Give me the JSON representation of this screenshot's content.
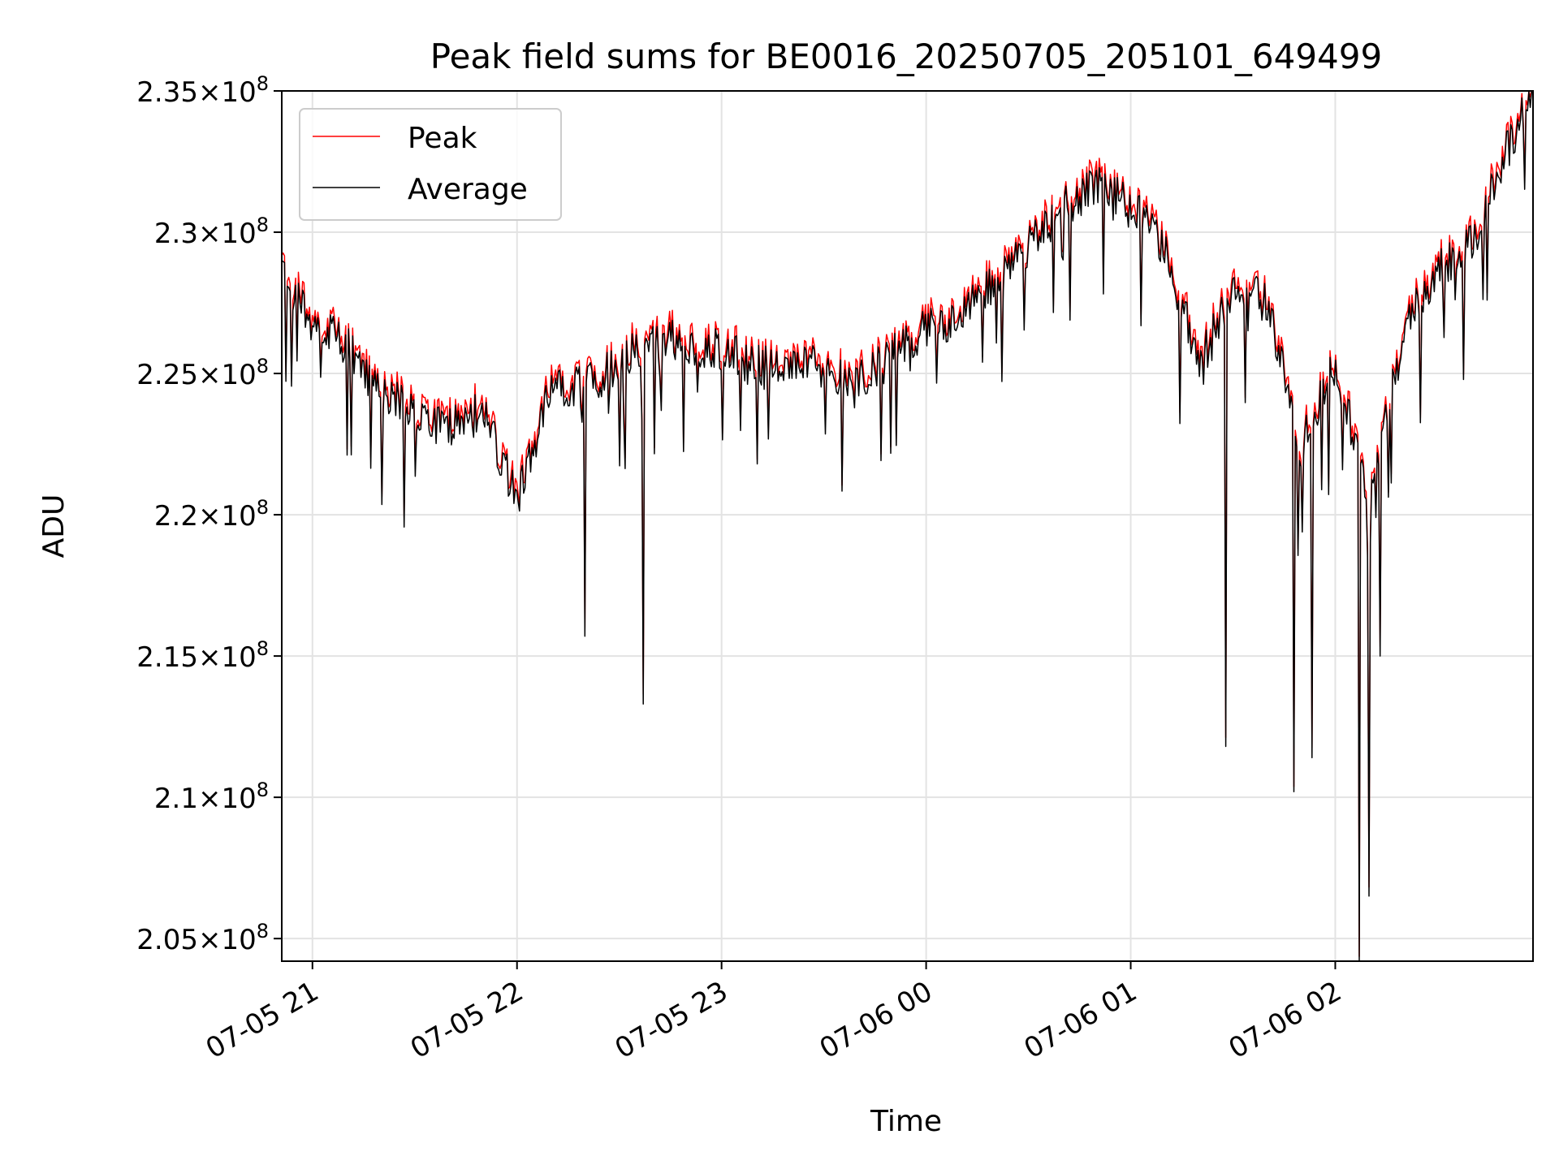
{
  "chart_data": {
    "type": "line",
    "title": "Peak field sums for BE0016_20250705_205101_649499",
    "xlabel": "Time",
    "ylabel": "ADU",
    "x_type": "time",
    "xlim": [
      "2025-07-05 20:51",
      "2025-07-06 02:58"
    ],
    "ylim": [
      204200000,
      235000000
    ],
    "x_ticks": [
      "2025-07-05 21:00",
      "2025-07-05 22:00",
      "2025-07-05 23:00",
      "2025-07-06 00:00",
      "2025-07-06 01:00",
      "2025-07-06 02:00"
    ],
    "x_tick_labels": [
      "07-05 21",
      "07-05 22",
      "07-05 23",
      "07-06 00",
      "07-06 01",
      "07-06 02"
    ],
    "y_ticks": [
      205000000,
      210000000,
      215000000,
      220000000,
      225000000,
      230000000,
      235000000
    ],
    "y_tick_mantissas": [
      "2.05",
      "2.1",
      "2.15",
      "2.2",
      "2.25",
      "2.3",
      "2.35"
    ],
    "y_tick_base": "10",
    "y_tick_exponent": "8",
    "grid": true,
    "legend_position": "top-left",
    "x": [
      "2025-07-05 20:51",
      "2025-07-05 21:00",
      "2025-07-05 21:10",
      "2025-07-05 21:20",
      "2025-07-05 21:30",
      "2025-07-05 21:40",
      "2025-07-05 21:50",
      "2025-07-05 22:00",
      "2025-07-05 22:10",
      "2025-07-05 22:20",
      "2025-07-05 22:30",
      "2025-07-05 22:40",
      "2025-07-05 22:50",
      "2025-07-05 23:00",
      "2025-07-05 23:10",
      "2025-07-05 23:20",
      "2025-07-05 23:30",
      "2025-07-05 23:40",
      "2025-07-05 23:50",
      "2025-07-06 00:00",
      "2025-07-06 00:10",
      "2025-07-06 00:20",
      "2025-07-06 00:30",
      "2025-07-06 00:40",
      "2025-07-06 00:50",
      "2025-07-06 01:00",
      "2025-07-06 01:10",
      "2025-07-06 01:20",
      "2025-07-06 01:30",
      "2025-07-06 01:40",
      "2025-07-06 01:50",
      "2025-07-06 02:00",
      "2025-07-06 02:10",
      "2025-07-06 02:20",
      "2025-07-06 02:30",
      "2025-07-06 02:40",
      "2025-07-06 02:50",
      "2025-07-06 02:58"
    ],
    "series": [
      {
        "name": "Peak",
        "color": "#ff0000",
        "values": [
          228500000,
          227000000,
          226200000,
          224500000,
          223700000,
          223200000,
          224000000,
          220600000,
          224800000,
          224700000,
          225500000,
          226500000,
          226200000,
          226000000,
          225500000,
          225500000,
          225400000,
          224800000,
          225800000,
          226800000,
          227200000,
          228400000,
          229700000,
          231000000,
          231800000,
          231200000,
          229600000,
          225500000,
          228300000,
          227700000,
          222500000,
          225500000,
          220800000,
          226800000,
          228800000,
          229800000,
          233000000,
          235000000
        ]
      },
      {
        "name": "Average",
        "color": "#000000",
        "values": [
          228400000,
          226900000,
          226100000,
          224400000,
          223600000,
          223100000,
          223900000,
          220500000,
          224700000,
          224600000,
          225400000,
          226400000,
          226100000,
          225900000,
          225400000,
          225400000,
          225300000,
          224700000,
          225700000,
          226700000,
          227100000,
          228300000,
          229600000,
          230900000,
          231700000,
          231100000,
          229500000,
          225400000,
          228200000,
          227600000,
          222400000,
          225400000,
          220700000,
          226700000,
          228700000,
          229700000,
          232900000,
          235000000
        ]
      }
    ],
    "dips": [
      {
        "x": "2025-07-05 22:37",
        "y": 213300000
      },
      {
        "x": "2025-07-05 22:20",
        "y": 215700000
      },
      {
        "x": "2025-07-06 01:28",
        "y": 211800000
      },
      {
        "x": "2025-07-06 01:48",
        "y": 210200000
      },
      {
        "x": "2025-07-06 01:53",
        "y": 211400000
      },
      {
        "x": "2025-07-06 02:07",
        "y": 204200000
      },
      {
        "x": "2025-07-06 02:10",
        "y": 206500000
      },
      {
        "x": "2025-07-06 02:13",
        "y": 215000000
      }
    ]
  }
}
